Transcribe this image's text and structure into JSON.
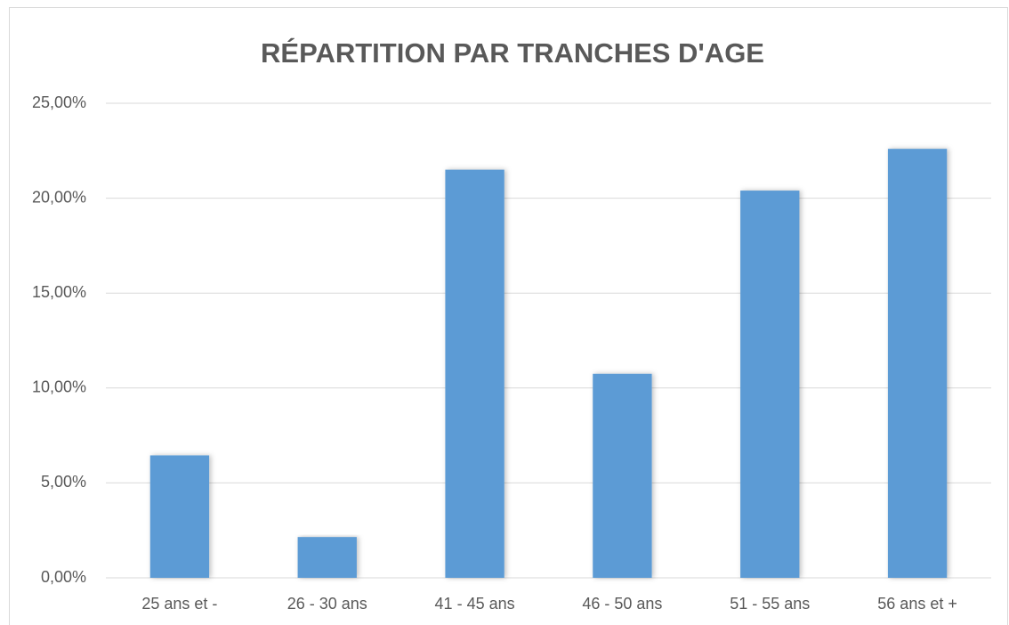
{
  "chart_data": {
    "type": "bar",
    "title": "RÉPARTITION PAR TRANCHES D'AGE",
    "categories": [
      "25 ans et -",
      "26 - 30 ans",
      "41 - 45 ans",
      "46 - 50 ans",
      "51 - 55 ans",
      "56 ans et +"
    ],
    "values": [
      6.45,
      2.15,
      21.5,
      10.75,
      20.4,
      22.6
    ],
    "color": "#5b9bd5",
    "ylim": [
      0,
      25
    ],
    "yticks": [
      {
        "value": 0,
        "label": "0,00%"
      },
      {
        "value": 5,
        "label": "5,00%"
      },
      {
        "value": 10,
        "label": "10,00%"
      },
      {
        "value": 15,
        "label": "15,00%"
      },
      {
        "value": 20,
        "label": "20,00%"
      },
      {
        "value": 25,
        "label": "25,00%"
      }
    ],
    "grid": true
  }
}
